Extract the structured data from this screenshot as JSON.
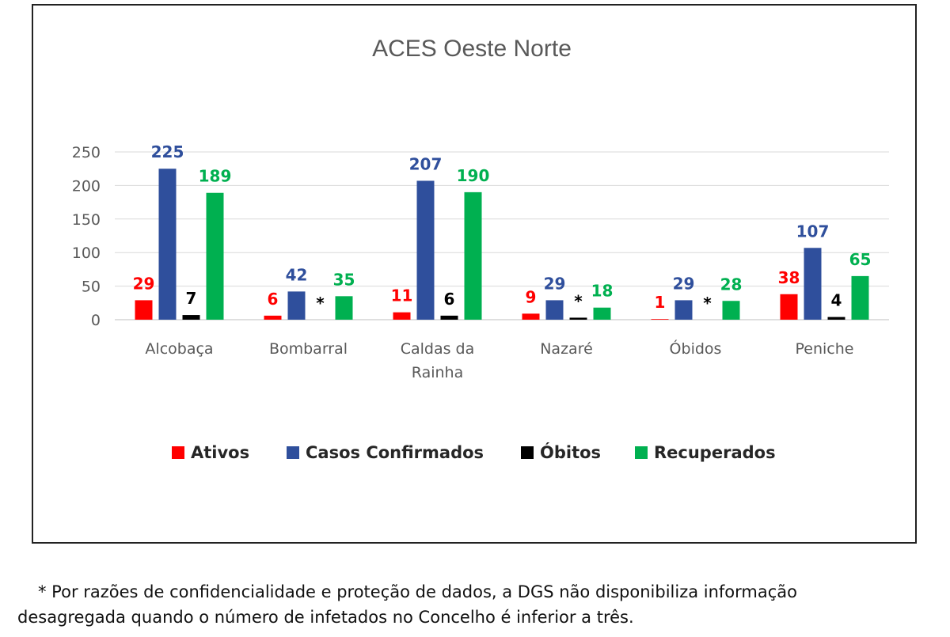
{
  "chart_data": {
    "type": "bar",
    "title": "ACES Oeste Norte",
    "categories": [
      "Alcobaça",
      "Bombarral",
      "Caldas da Rainha",
      "Nazaré",
      "Óbidos",
      "Peniche"
    ],
    "category_lines": [
      [
        "Alcobaça"
      ],
      [
        "Bombarral"
      ],
      [
        "Caldas da",
        "Rainha"
      ],
      [
        "Nazaré"
      ],
      [
        "Óbidos"
      ],
      [
        "Peniche"
      ]
    ],
    "series": [
      {
        "name": "Ativos",
        "color": "#ff0000",
        "values": [
          29,
          6,
          11,
          9,
          1,
          38
        ],
        "labels": [
          "29",
          "6",
          "11",
          "9",
          "1",
          "38"
        ]
      },
      {
        "name": "Casos Confirmados",
        "color": "#2f4f9c",
        "values": [
          225,
          42,
          207,
          29,
          29,
          107
        ],
        "labels": [
          "225",
          "42",
          "207",
          "29",
          "29",
          "107"
        ]
      },
      {
        "name": "Óbitos",
        "color": "#000000",
        "values": [
          7,
          0,
          6,
          3,
          0,
          4
        ],
        "labels": [
          "7",
          "*",
          "6",
          "*",
          "*",
          "4"
        ]
      },
      {
        "name": "Recuperados",
        "color": "#00b050",
        "values": [
          189,
          35,
          190,
          18,
          28,
          65
        ],
        "labels": [
          "189",
          "35",
          "190",
          "18",
          "28",
          "65"
        ]
      }
    ],
    "y_ticks": [
      "0",
      "50",
      "100",
      "150",
      "200",
      "250"
    ],
    "ylim": [
      0,
      250
    ],
    "grid": true,
    "legend_position": "bottom"
  },
  "footnote": {
    "line1": "* Por razões de confidencialidade e proteção de dados, a DGS não disponibiliza informação",
    "line2": "desagregada quando o número de infetados no Concelho é inferior a três."
  }
}
